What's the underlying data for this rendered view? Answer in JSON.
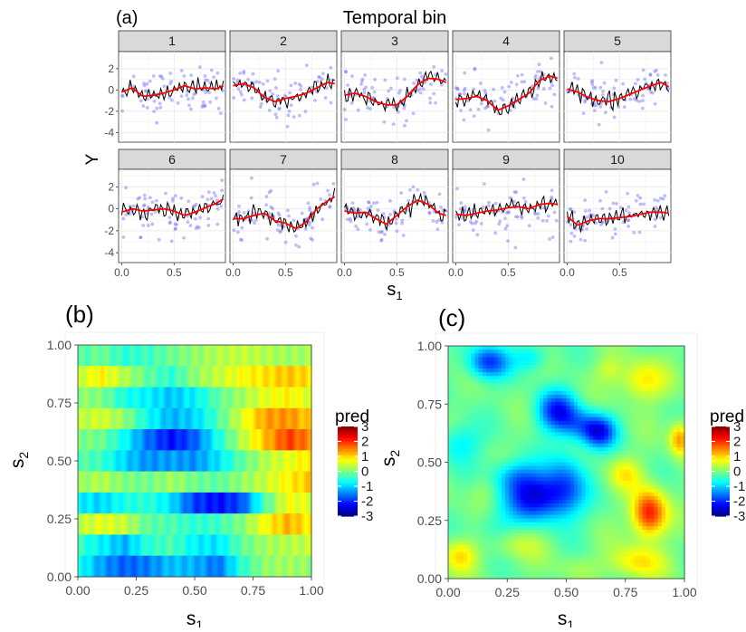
{
  "panel_labels": {
    "a": "(a)",
    "b": "(b)",
    "c": "(c)"
  },
  "colors": {
    "points": "#6e6ef0",
    "truth_line": "#000000",
    "fit_line": "#ff0000",
    "strip_fill": "#d9d9d9",
    "grid": "#ebebeb",
    "colorscale": [
      "#00007f",
      "#0000ff",
      "#007fff",
      "#00ffff",
      "#7fff7f",
      "#ffff00",
      "#ff7f00",
      "#ff0000",
      "#7f0000"
    ]
  },
  "chart_data": [
    {
      "type": "line",
      "title": "Temporal bin",
      "xlabel": "s",
      "xlabel_sub": "1",
      "ylabel": "Y",
      "xlim": [
        -0.03,
        0.99
      ],
      "ylim": [
        -4.9,
        3.6
      ],
      "x_ticks": [
        0.0,
        0.5
      ],
      "x_tick_labels": [
        "0.0",
        "0.5"
      ],
      "y_ticks": [
        2,
        0,
        -2,
        -4
      ],
      "y_tick_labels": [
        "2",
        "0",
        "-2",
        "-4"
      ],
      "grid": true,
      "facets": [
        {
          "label": "1",
          "fit": [
            [
              0.0,
              -0.2
            ],
            [
              0.1,
              0.2
            ],
            [
              0.2,
              -0.6
            ],
            [
              0.3,
              -0.5
            ],
            [
              0.4,
              -0.3
            ],
            [
              0.5,
              0.0
            ],
            [
              0.6,
              0.4
            ],
            [
              0.7,
              0.1
            ],
            [
              0.8,
              0.2
            ],
            [
              0.9,
              0.1
            ],
            [
              0.97,
              0.4
            ]
          ]
        },
        {
          "label": "2",
          "fit": [
            [
              0.0,
              0.4
            ],
            [
              0.1,
              0.6
            ],
            [
              0.2,
              0.2
            ],
            [
              0.3,
              -0.7
            ],
            [
              0.4,
              -1.1
            ],
            [
              0.5,
              -0.8
            ],
            [
              0.6,
              -0.6
            ],
            [
              0.7,
              -0.3
            ],
            [
              0.8,
              0.2
            ],
            [
              0.9,
              0.7
            ],
            [
              0.97,
              0.6
            ]
          ]
        },
        {
          "label": "3",
          "fit": [
            [
              0.0,
              -0.5
            ],
            [
              0.1,
              -0.3
            ],
            [
              0.2,
              -0.6
            ],
            [
              0.3,
              -1.1
            ],
            [
              0.4,
              -1.4
            ],
            [
              0.5,
              -1.4
            ],
            [
              0.6,
              -0.6
            ],
            [
              0.7,
              0.5
            ],
            [
              0.8,
              1.1
            ],
            [
              0.9,
              1.0
            ],
            [
              0.97,
              0.7
            ]
          ]
        },
        {
          "label": "4",
          "fit": [
            [
              0.0,
              -0.9
            ],
            [
              0.1,
              -0.8
            ],
            [
              0.2,
              -0.6
            ],
            [
              0.3,
              -1.0
            ],
            [
              0.4,
              -1.9
            ],
            [
              0.5,
              -1.5
            ],
            [
              0.6,
              -0.9
            ],
            [
              0.7,
              -0.3
            ],
            [
              0.8,
              0.9
            ],
            [
              0.9,
              1.3
            ],
            [
              0.97,
              1.1
            ]
          ]
        },
        {
          "label": "5",
          "fit": [
            [
              0.0,
              0.1
            ],
            [
              0.1,
              -0.2
            ],
            [
              0.2,
              -0.7
            ],
            [
              0.3,
              -1.0
            ],
            [
              0.4,
              -1.1
            ],
            [
              0.5,
              -0.8
            ],
            [
              0.6,
              -0.4
            ],
            [
              0.7,
              0.0
            ],
            [
              0.8,
              0.4
            ],
            [
              0.9,
              0.7
            ],
            [
              0.97,
              0.3
            ]
          ]
        },
        {
          "label": "6",
          "fit": [
            [
              0.0,
              -0.3
            ],
            [
              0.1,
              0.0
            ],
            [
              0.2,
              -0.2
            ],
            [
              0.3,
              -0.1
            ],
            [
              0.4,
              0.0
            ],
            [
              0.5,
              -0.2
            ],
            [
              0.6,
              -0.6
            ],
            [
              0.7,
              -0.3
            ],
            [
              0.8,
              0.1
            ],
            [
              0.9,
              0.5
            ],
            [
              0.97,
              0.9
            ]
          ]
        },
        {
          "label": "7",
          "fit": [
            [
              0.0,
              -0.9
            ],
            [
              0.1,
              -0.9
            ],
            [
              0.2,
              -0.6
            ],
            [
              0.3,
              -0.4
            ],
            [
              0.4,
              -1.1
            ],
            [
              0.5,
              -1.3
            ],
            [
              0.6,
              -1.8
            ],
            [
              0.7,
              -1.2
            ],
            [
              0.8,
              0.0
            ],
            [
              0.9,
              0.7
            ],
            [
              0.97,
              1.1
            ]
          ]
        },
        {
          "label": "8",
          "fit": [
            [
              0.0,
              -0.2
            ],
            [
              0.1,
              -0.4
            ],
            [
              0.2,
              -0.3
            ],
            [
              0.3,
              -0.9
            ],
            [
              0.4,
              -1.4
            ],
            [
              0.5,
              -0.6
            ],
            [
              0.6,
              0.2
            ],
            [
              0.7,
              0.8
            ],
            [
              0.8,
              0.4
            ],
            [
              0.9,
              -0.4
            ],
            [
              0.97,
              -0.6
            ]
          ]
        },
        {
          "label": "9",
          "fit": [
            [
              0.0,
              -0.5
            ],
            [
              0.1,
              -0.6
            ],
            [
              0.2,
              -0.4
            ],
            [
              0.3,
              -0.2
            ],
            [
              0.4,
              -0.1
            ],
            [
              0.5,
              0.1
            ],
            [
              0.6,
              0.2
            ],
            [
              0.7,
              0.0
            ],
            [
              0.8,
              0.4
            ],
            [
              0.9,
              0.5
            ],
            [
              0.97,
              0.4
            ]
          ]
        },
        {
          "label": "10",
          "fit": [
            [
              0.0,
              -0.7
            ],
            [
              0.1,
              -1.5
            ],
            [
              0.2,
              -1.1
            ],
            [
              0.3,
              -0.9
            ],
            [
              0.4,
              -0.9
            ],
            [
              0.5,
              -0.8
            ],
            [
              0.6,
              -0.7
            ],
            [
              0.7,
              -0.5
            ],
            [
              0.8,
              -0.3
            ],
            [
              0.9,
              -0.3
            ],
            [
              0.97,
              -0.4
            ]
          ]
        }
      ]
    },
    {
      "type": "heatmap",
      "xlabel": "s",
      "xlabel_sub": "1",
      "ylabel": "s",
      "ylabel_sub": "2",
      "xlim": [
        0,
        1
      ],
      "ylim": [
        0,
        1
      ],
      "x_ticks": [
        0.0,
        0.25,
        0.5,
        0.75,
        1.0
      ],
      "x_tick_labels": [
        "0.00",
        "0.25",
        "0.50",
        "0.75",
        "1.00"
      ],
      "y_ticks": [
        0.0,
        0.25,
        0.5,
        0.75,
        1.0
      ],
      "y_tick_labels": [
        "0.00",
        "0.25",
        "0.50",
        "0.75",
        "1.00"
      ],
      "y_band_edges": [
        0.0,
        0.1,
        0.2,
        0.3,
        0.4,
        0.5,
        0.6,
        0.7,
        0.8,
        0.9,
        1.0
      ],
      "x_knots": [
        0.0,
        0.1,
        0.2,
        0.3,
        0.4,
        0.5,
        0.6,
        0.7,
        0.8,
        0.9,
        1.0
      ],
      "bands": [
        [
          -0.3,
          -0.1,
          -0.5,
          -0.4,
          -0.1,
          0.1,
          0.3,
          0.4,
          0.3,
          0.2,
          0.2
        ],
        [
          0.4,
          0.8,
          0.3,
          -0.2,
          -0.5,
          0.1,
          0.4,
          0.7,
          0.9,
          1.1,
          0.9
        ],
        [
          0.1,
          0.0,
          -0.6,
          -0.8,
          -1.1,
          -0.8,
          -0.2,
          0.2,
          0.6,
          0.8,
          0.5
        ],
        [
          0.3,
          0.5,
          0.1,
          -0.7,
          -1.2,
          -1.0,
          -0.3,
          0.5,
          1.3,
          1.4,
          1.0
        ],
        [
          0.0,
          -0.1,
          -0.7,
          -1.6,
          -2.2,
          -1.7,
          -0.6,
          0.3,
          1.1,
          1.9,
          1.4
        ],
        [
          -0.2,
          -0.4,
          -1.0,
          -1.4,
          -1.3,
          -1.4,
          -0.9,
          -0.2,
          0.3,
          0.6,
          0.9
        ],
        [
          0.1,
          0.3,
          0.0,
          -0.1,
          0.2,
          -0.1,
          -0.2,
          0.1,
          0.4,
          0.8,
          1.1
        ],
        [
          -0.8,
          -1.0,
          -0.6,
          -0.5,
          -0.9,
          -1.9,
          -2.2,
          -1.8,
          -0.3,
          0.7,
          0.5
        ],
        [
          0.3,
          0.6,
          0.4,
          -0.2,
          -0.3,
          -0.5,
          -0.4,
          0.0,
          0.7,
          1.2,
          0.8
        ],
        [
          -0.4,
          -0.8,
          -1.2,
          -0.5,
          -0.3,
          -0.8,
          -0.9,
          -0.2,
          0.2,
          0.3,
          0.4
        ],
        [
          -0.6,
          -1.3,
          -1.7,
          -1.5,
          -1.1,
          -1.2,
          -1.6,
          -0.5,
          0.1,
          0.2,
          0.1
        ]
      ],
      "legend_title": "pred",
      "legend_ticks": [
        3,
        2,
        1,
        0,
        -1,
        -2,
        -3
      ],
      "legend_tick_labels": [
        "3",
        "2",
        "1",
        "0",
        "-1",
        "-2",
        "-3"
      ],
      "color_range": [
        -3,
        3
      ],
      "legend_position": "right"
    },
    {
      "type": "heatmap",
      "xlabel": "s",
      "xlabel_sub": "1",
      "ylabel": "s",
      "ylabel_sub": "2",
      "xlim": [
        0,
        1
      ],
      "ylim": [
        0,
        1
      ],
      "x_ticks": [
        0.0,
        0.25,
        0.5,
        0.75,
        1.0
      ],
      "x_tick_labels": [
        "0.00",
        "0.25",
        "0.50",
        "0.75",
        "1.00"
      ],
      "y_ticks": [
        0.0,
        0.25,
        0.5,
        0.75,
        1.0
      ],
      "y_tick_labels": [
        "0.00",
        "0.25",
        "0.50",
        "0.75",
        "1.00"
      ],
      "base_value": -0.1,
      "blobs": [
        {
          "x": 0.37,
          "y": 0.35,
          "sx": 0.09,
          "sy": 0.07,
          "v": -2.2
        },
        {
          "x": 0.5,
          "y": 0.4,
          "sx": 0.06,
          "sy": 0.1,
          "v": -1.3
        },
        {
          "x": 0.28,
          "y": 0.44,
          "sx": 0.07,
          "sy": 0.05,
          "v": -1.0
        },
        {
          "x": 0.46,
          "y": 0.72,
          "sx": 0.06,
          "sy": 0.06,
          "v": -1.9
        },
        {
          "x": 0.64,
          "y": 0.63,
          "sx": 0.05,
          "sy": 0.05,
          "v": -2.0
        },
        {
          "x": 0.55,
          "y": 0.66,
          "sx": 0.06,
          "sy": 0.05,
          "v": -1.0
        },
        {
          "x": 0.17,
          "y": 0.93,
          "sx": 0.06,
          "sy": 0.05,
          "v": -1.8
        },
        {
          "x": 0.35,
          "y": 0.95,
          "sx": 0.05,
          "sy": 0.04,
          "v": -0.8
        },
        {
          "x": 0.05,
          "y": 0.58,
          "sx": 0.06,
          "sy": 0.06,
          "v": -0.8
        },
        {
          "x": 0.2,
          "y": 0.22,
          "sx": 0.06,
          "sy": 0.05,
          "v": -0.5
        },
        {
          "x": 0.85,
          "y": 0.28,
          "sx": 0.05,
          "sy": 0.07,
          "v": 2.3
        },
        {
          "x": 0.98,
          "y": 0.6,
          "sx": 0.03,
          "sy": 0.05,
          "v": 1.5
        },
        {
          "x": 0.82,
          "y": 0.85,
          "sx": 0.07,
          "sy": 0.06,
          "v": 1.0
        },
        {
          "x": 0.75,
          "y": 0.45,
          "sx": 0.05,
          "sy": 0.05,
          "v": 0.8
        },
        {
          "x": 0.8,
          "y": 0.07,
          "sx": 0.08,
          "sy": 0.05,
          "v": 1.0
        },
        {
          "x": 0.05,
          "y": 0.1,
          "sx": 0.05,
          "sy": 0.05,
          "v": 1.0
        },
        {
          "x": 0.3,
          "y": 0.15,
          "sx": 0.08,
          "sy": 0.05,
          "v": 0.5
        },
        {
          "x": 0.15,
          "y": 0.38,
          "sx": 0.05,
          "sy": 0.05,
          "v": 0.4
        },
        {
          "x": 0.55,
          "y": 0.05,
          "sx": 0.06,
          "sy": 0.04,
          "v": 0.3
        },
        {
          "x": 0.68,
          "y": 0.9,
          "sx": 0.04,
          "sy": 0.04,
          "v": 0.5
        }
      ],
      "legend_title": "pred",
      "legend_ticks": [
        3,
        2,
        1,
        0,
        -1,
        -2,
        -3
      ],
      "legend_tick_labels": [
        "3",
        "2",
        "1",
        "0",
        "-1",
        "-2",
        "-3"
      ],
      "color_range": [
        -3,
        3
      ],
      "legend_position": "right"
    }
  ]
}
